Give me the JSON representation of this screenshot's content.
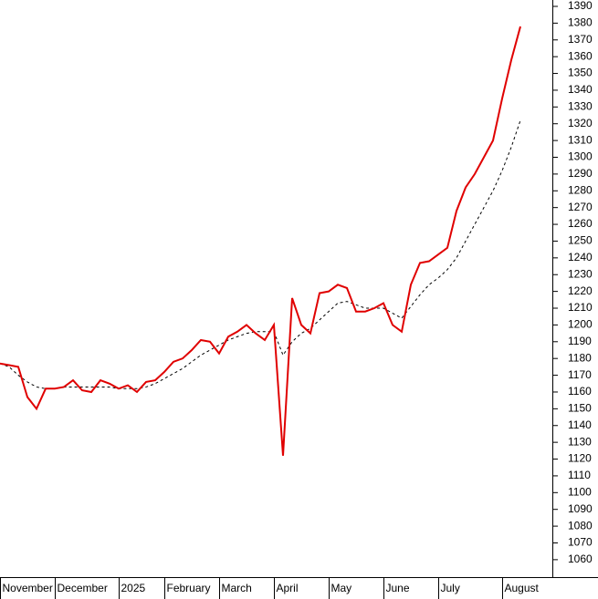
{
  "chart_data": {
    "type": "line",
    "categories": [
      "November",
      null,
      null,
      null,
      null,
      null,
      "December",
      null,
      null,
      null,
      null,
      null,
      null,
      "2025",
      null,
      null,
      null,
      null,
      "February",
      null,
      null,
      null,
      null,
      null,
      "March",
      null,
      null,
      null,
      null,
      null,
      "April",
      null,
      null,
      null,
      null,
      null,
      "May",
      null,
      null,
      null,
      null,
      null,
      "June",
      null,
      null,
      null,
      null,
      null,
      "July",
      null,
      null,
      null,
      null,
      null,
      null,
      "August",
      null,
      null
    ],
    "series": [
      {
        "color": "#e00000",
        "style": "solid",
        "values": [
          1177,
          1176,
          1175,
          1157,
          1150,
          1162,
          1162,
          1163,
          1167,
          1161,
          1160,
          1167,
          1165,
          1162,
          1164,
          1160,
          1166,
          1167,
          1172,
          1178,
          1180,
          1185,
          1191,
          1190,
          1183,
          1193,
          1196,
          1200,
          1195,
          1191,
          1200,
          1122,
          1216,
          1200,
          1195,
          1219,
          1220,
          1224,
          1222,
          1208,
          1208,
          1210,
          1213,
          1200,
          1196,
          1224,
          1237,
          1238,
          1242,
          1246,
          1268,
          1282,
          1290,
          1300,
          1310,
          1335,
          1358,
          1378
        ]
      },
      {
        "color": "#000000",
        "style": "dashed",
        "values": [
          1177,
          1175,
          1170,
          1166,
          1163,
          1162,
          1162,
          1163,
          1163,
          1163,
          1163,
          1163,
          1163,
          1162,
          1162,
          1162,
          1163,
          1165,
          1168,
          1171,
          1174,
          1178,
          1182,
          1185,
          1188,
          1191,
          1193,
          1195,
          1196,
          1196,
          1196,
          1182,
          1190,
          1195,
          1198,
          1203,
          1208,
          1213,
          1214,
          1212,
          1210,
          1210,
          1210,
          1207,
          1204,
          1211,
          1218,
          1224,
          1228,
          1233,
          1240,
          1250,
          1260,
          1270,
          1280,
          1292,
          1306,
          1322
        ]
      }
    ],
    "ylim": [
      1049.6,
      1393.8
    ],
    "yticks": [
      1060,
      1070,
      1080,
      1090,
      1100,
      1110,
      1120,
      1130,
      1140,
      1150,
      1160,
      1170,
      1180,
      1190,
      1200,
      1210,
      1220,
      1230,
      1240,
      1250,
      1260,
      1270,
      1280,
      1290,
      1300,
      1310,
      1320,
      1330,
      1340,
      1350,
      1360,
      1370,
      1380,
      1390
    ],
    "y_axis_side": "right"
  }
}
